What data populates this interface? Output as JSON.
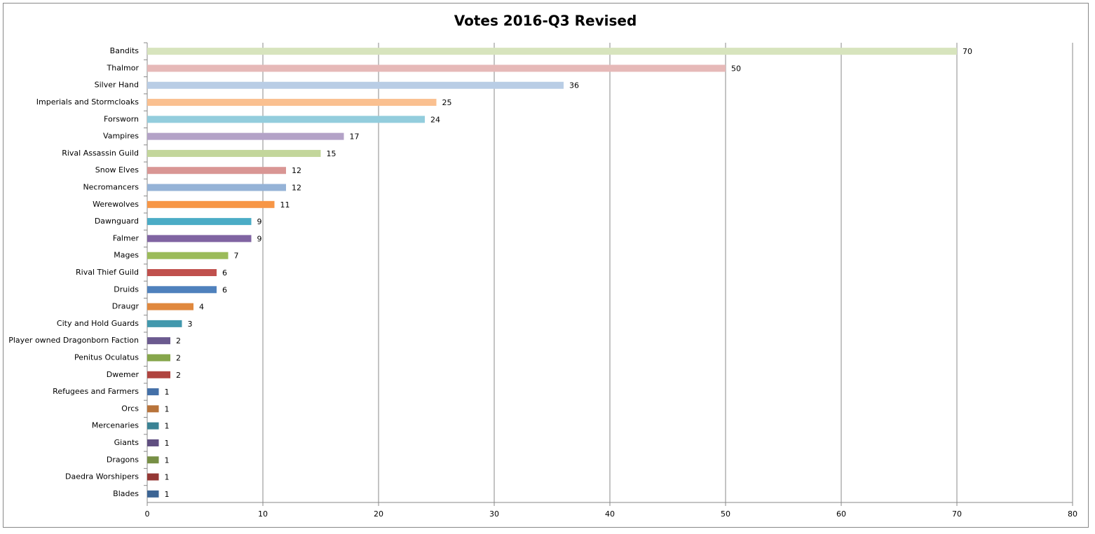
{
  "chart_data": {
    "type": "barh",
    "title": "Votes 2016-Q3 Revised",
    "categories": [
      "Bandits",
      "Thalmor",
      "Silver Hand",
      "Imperials and Stormcloaks",
      "Forsworn",
      "Vampires",
      "Rival Assassin Guild",
      "Snow Elves",
      "Necromancers",
      "Werewolves",
      "Dawnguard",
      "Falmer",
      "Mages",
      "Rival Thief Guild",
      "Druids",
      "Draugr",
      "City and Hold Guards",
      "Player owned Dragonborn Faction",
      "Penitus Oculatus",
      "Dwemer",
      "Refugees and Farmers",
      "Orcs",
      "Mercenaries",
      "Giants",
      "Dragons",
      "Daedra Worshipers",
      "Blades"
    ],
    "values": [
      70,
      50,
      36,
      25,
      24,
      17,
      15,
      12,
      12,
      11,
      9,
      9,
      7,
      6,
      6,
      4,
      3,
      2,
      2,
      2,
      1,
      1,
      1,
      1,
      1,
      1,
      1
    ],
    "colors": [
      "#d7e4bd",
      "#e6b9b8",
      "#b9cde5",
      "#fac090",
      "#93cddd",
      "#b3a2c7",
      "#c3d69b",
      "#d99694",
      "#95b3d7",
      "#f79646",
      "#4bacc6",
      "#8064a2",
      "#9bbb59",
      "#c0504d",
      "#4f81bd",
      "#e0883e",
      "#4298ad",
      "#6b5a8f",
      "#86a64b",
      "#b0443f",
      "#4470a8",
      "#b8733a",
      "#3a8294",
      "#5f4e80",
      "#778f45",
      "#943734",
      "#3c6494"
    ],
    "xlim": [
      0,
      80
    ],
    "xticks": [
      0,
      10,
      20,
      30,
      40,
      50,
      60,
      70,
      80
    ],
    "grid": true
  }
}
